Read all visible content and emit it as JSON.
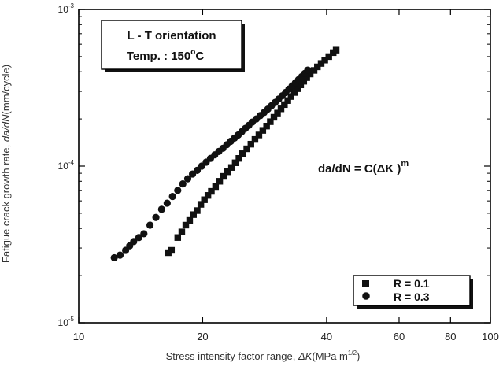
{
  "chart_data": {
    "type": "scatter",
    "xscale": "log",
    "yscale": "log",
    "xlim": [
      10,
      100
    ],
    "ylim": [
      1e-05,
      0.001
    ],
    "xticks": [
      {
        "v": 10,
        "label": "10"
      },
      {
        "v": 20,
        "label": "20"
      },
      {
        "v": 40,
        "label": "40"
      },
      {
        "v": 60,
        "label": "60"
      },
      {
        "v": 80,
        "label": "80"
      },
      {
        "v": 100,
        "label": "100"
      }
    ],
    "yticks": [
      {
        "v": 1e-05,
        "base": "10",
        "exp": "-5"
      },
      {
        "v": 0.0001,
        "base": "10",
        "exp": "-4"
      },
      {
        "v": 0.001,
        "base": "10",
        "exp": "-3"
      }
    ],
    "xlabel": {
      "prefix": "Stress intensity factor range, ",
      "symbol": "ΔK",
      "units": "(MPa m",
      "exp": "1/2",
      "close": ")"
    },
    "ylabel": {
      "prefix": "Fatigue crack growth rate, ",
      "symbol": "da/dN",
      "units": "(mm/cycle)"
    },
    "annotation_box": {
      "line1": "L - T orientation",
      "line2_prefix": "Temp. : 150",
      "line2_deg": "o",
      "line2_suffix": "C"
    },
    "equation": {
      "main": "da/dN = C(ΔK )",
      "exp": "m"
    },
    "grid": false,
    "legend": {
      "position": "bottom-right"
    },
    "series": [
      {
        "name": "R = 0.1",
        "marker": "square",
        "color": "#111111",
        "x": [
          16.5,
          16.8,
          17.4,
          17.8,
          18.2,
          18.6,
          19.0,
          19.4,
          19.8,
          20.2,
          20.6,
          21.0,
          21.5,
          22.0,
          22.5,
          23.0,
          23.5,
          24.0,
          24.5,
          25.0,
          25.6,
          26.2,
          26.8,
          27.4,
          28.0,
          28.6,
          29.2,
          29.8,
          30.4,
          31.0,
          31.6,
          32.2,
          32.8,
          33.4,
          34.0,
          34.6,
          35.2,
          35.8,
          36.5,
          37.3,
          38.0,
          38.8,
          39.6,
          40.5,
          41.5,
          42.2
        ],
        "y": [
          2.8e-05,
          2.9e-05,
          3.5e-05,
          3.8e-05,
          4.2e-05,
          4.5e-05,
          4.9e-05,
          5.2e-05,
          5.7e-05,
          6.1e-05,
          6.5e-05,
          6.9e-05,
          7.4e-05,
          8e-05,
          8.6e-05,
          9.2e-05,
          9.8e-05,
          0.000105,
          0.000112,
          0.00012,
          0.000129,
          0.000138,
          0.000148,
          0.000158,
          0.000169,
          0.00018,
          0.000192,
          0.000205,
          0.000218,
          0.000232,
          0.000247,
          0.000262,
          0.000278,
          0.000295,
          0.000312,
          0.00033,
          0.000348,
          0.000367,
          0.000387,
          0.000408,
          0.00043,
          0.000452,
          0.000475,
          0.0005,
          0.00053,
          0.00055
        ]
      },
      {
        "name": "R = 0.3",
        "marker": "circle",
        "color": "#111111",
        "x": [
          12.2,
          12.6,
          13.0,
          13.3,
          13.6,
          14.0,
          14.4,
          14.9,
          15.4,
          15.9,
          16.4,
          16.9,
          17.4,
          17.9,
          18.4,
          18.9,
          19.4,
          19.9,
          20.4,
          20.9,
          21.4,
          21.9,
          22.4,
          22.9,
          23.4,
          23.9,
          24.4,
          24.9,
          25.4,
          25.9,
          26.4,
          27.0,
          27.6,
          28.2,
          28.8,
          29.4,
          30.0,
          30.6,
          31.2,
          31.8,
          32.4,
          33.0,
          33.6,
          34.2,
          34.8,
          35.4,
          36.0
        ],
        "y": [
          2.6e-05,
          2.7e-05,
          2.9e-05,
          3.1e-05,
          3.3e-05,
          3.5e-05,
          3.7e-05,
          4.2e-05,
          4.7e-05,
          5.3e-05,
          5.8e-05,
          6.4e-05,
          7e-05,
          7.7e-05,
          8.3e-05,
          8.9e-05,
          9.4e-05,
          0.0001,
          0.000106,
          0.000112,
          0.000118,
          0.000124,
          0.00013,
          0.000137,
          0.000144,
          0.000151,
          0.000158,
          0.000166,
          0.000174,
          0.000182,
          0.000191,
          0.0002,
          0.00021,
          0.00022,
          0.000231,
          0.000243,
          0.000255,
          0.000268,
          0.000281,
          0.000295,
          0.00031,
          0.000325,
          0.00034,
          0.000356,
          0.000372,
          0.00039,
          0.00041
        ]
      }
    ]
  }
}
